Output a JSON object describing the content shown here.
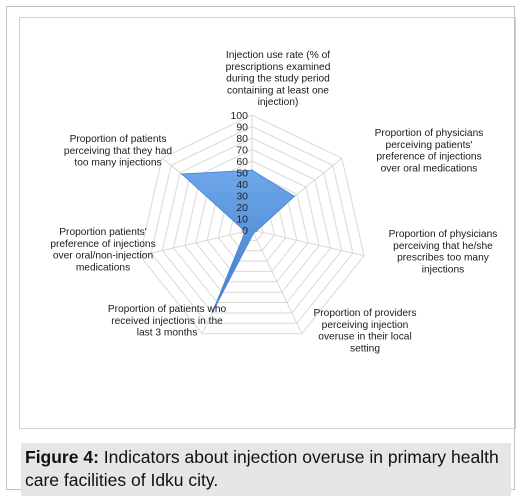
{
  "figure": {
    "label": "Figure 4:",
    "caption": "Indicators about injection overuse in primary health care facilities of Idku city."
  },
  "chart_data": {
    "type": "radar",
    "categories": [
      "Injection use rate (% of prescriptions examined during the study period containing at least one injection)",
      "Proportion of physicians perceiving patients' preference of injections over oral medications",
      "Proportion of physicians perceiving that he/she prescribes too many injections",
      "Proportion of providers perceiving injection overuse in their local setting",
      "Proportion of patients who received injections in the last 3 months",
      "Proportion patients' preference of injections over oral/non-injection medications",
      "Proportion of patients perceiving that they had too many injections"
    ],
    "category_lines": [
      [
        "Injection use rate (% of",
        "prescriptions examined",
        "during the study period",
        "containing at least one",
        "injection)"
      ],
      [
        "Proportion of physicians",
        "perceiving patients'",
        "preference of injections",
        "over oral medications"
      ],
      [
        "Proportion of physicians",
        "perceiving that he/she",
        "prescribes too many",
        "injections"
      ],
      [
        "Proportion of providers",
        "perceiving injection",
        "overuse in their local",
        "setting"
      ],
      [
        "Proportion of patients who",
        "received injections in the",
        "last 3 months"
      ],
      [
        "Proportion patients'",
        "preference of injections",
        "over oral/non-injection",
        "medications"
      ],
      [
        "Proportion of patients",
        "perceiving that they had",
        "too many injections"
      ]
    ],
    "values": [
      52,
      47,
      4,
      3,
      79,
      6,
      78
    ],
    "rlim": [
      0,
      100
    ],
    "ticks": [
      "0",
      "10",
      "20",
      "30",
      "40",
      "50",
      "60",
      "70",
      "80",
      "90",
      "100"
    ],
    "grid": true,
    "fill_color": "#4f8bd6"
  }
}
